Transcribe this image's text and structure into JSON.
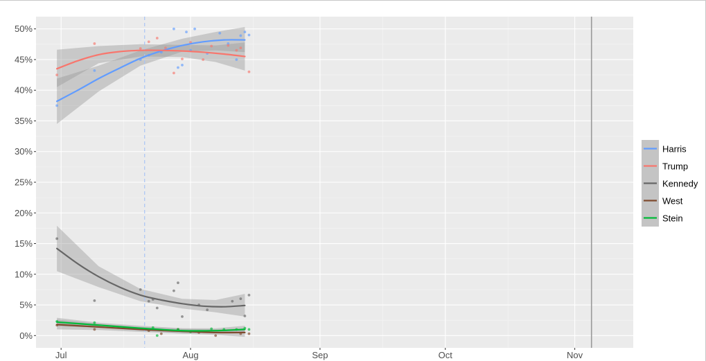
{
  "chart_data": {
    "type": "line",
    "title": "",
    "xlabel": "",
    "ylabel": "",
    "x_ticks": [
      "Jul",
      "Aug",
      "Sep",
      "Oct",
      "Nov"
    ],
    "x_tick_dates": [
      "2024-07-01",
      "2024-08-01",
      "2024-09-01",
      "2024-10-01",
      "2024-11-01"
    ],
    "xlim": [
      "2024-06-25",
      "2024-11-15"
    ],
    "ylim": [
      -2,
      52
    ],
    "y_ticks": [
      "0%",
      "5%",
      "10%",
      "15%",
      "20%",
      "25%",
      "30%",
      "35%",
      "40%",
      "45%",
      "50%"
    ],
    "y_tick_values": [
      0,
      5,
      10,
      15,
      20,
      25,
      30,
      35,
      40,
      45,
      50
    ],
    "grid": true,
    "legend_position": "right",
    "reference_lines": [
      {
        "date": "2024-07-21",
        "style": "dashed",
        "color": "#a9c4f5"
      },
      {
        "date": "2024-11-05",
        "style": "solid",
        "color": "#999999"
      }
    ],
    "series": [
      {
        "name": "Harris",
        "color": "#619cff",
        "trend": [
          [
            "2024-06-30",
            38.2
          ],
          [
            "2024-07-05",
            40.0
          ],
          [
            "2024-07-10",
            41.9
          ],
          [
            "2024-07-15",
            43.6
          ],
          [
            "2024-07-20",
            45.2
          ],
          [
            "2024-07-25",
            46.4
          ],
          [
            "2024-07-30",
            47.3
          ],
          [
            "2024-08-04",
            47.9
          ],
          [
            "2024-08-09",
            48.2
          ],
          [
            "2024-08-14",
            48.2
          ]
        ],
        "band": [
          [
            "2024-06-30",
            34.5,
            41.9
          ],
          [
            "2024-07-10",
            39.8,
            44.0
          ],
          [
            "2024-07-20",
            44.0,
            46.5
          ],
          [
            "2024-07-30",
            46.3,
            48.4
          ],
          [
            "2024-08-07",
            46.5,
            49.5
          ],
          [
            "2024-08-14",
            46.2,
            50.3
          ]
        ],
        "points": [
          [
            "2024-06-30",
            37.5
          ],
          [
            "2024-07-09",
            43.2
          ],
          [
            "2024-07-20",
            45.0
          ],
          [
            "2024-07-22",
            45.7
          ],
          [
            "2024-07-25",
            46.2
          ],
          [
            "2024-07-28",
            50.0
          ],
          [
            "2024-07-29",
            43.7
          ],
          [
            "2024-07-30",
            44.1
          ],
          [
            "2024-07-31",
            49.5
          ],
          [
            "2024-08-01",
            46.5
          ],
          [
            "2024-08-02",
            50.0
          ],
          [
            "2024-08-05",
            46.0
          ],
          [
            "2024-08-08",
            49.3
          ],
          [
            "2024-08-10",
            47.6
          ],
          [
            "2024-08-12",
            45.0
          ],
          [
            "2024-08-13",
            48.9
          ],
          [
            "2024-08-14",
            49.5
          ],
          [
            "2024-08-15",
            49.0
          ]
        ]
      },
      {
        "name": "Trump",
        "color": "#f8766d",
        "trend": [
          [
            "2024-06-30",
            43.5
          ],
          [
            "2024-07-05",
            44.8
          ],
          [
            "2024-07-10",
            45.8
          ],
          [
            "2024-07-15",
            46.3
          ],
          [
            "2024-07-20",
            46.5
          ],
          [
            "2024-07-25",
            46.5
          ],
          [
            "2024-07-30",
            46.4
          ],
          [
            "2024-08-04",
            46.2
          ],
          [
            "2024-08-09",
            45.9
          ],
          [
            "2024-08-14",
            45.5
          ]
        ],
        "band": [
          [
            "2024-06-30",
            40.5,
            46.6
          ],
          [
            "2024-07-10",
            44.4,
            47.2
          ],
          [
            "2024-07-20",
            45.5,
            47.5
          ],
          [
            "2024-07-30",
            45.4,
            47.4
          ],
          [
            "2024-08-07",
            44.6,
            47.3
          ],
          [
            "2024-08-14",
            43.2,
            47.8
          ]
        ],
        "points": [
          [
            "2024-06-30",
            42.5
          ],
          [
            "2024-07-09",
            47.6
          ],
          [
            "2024-07-20",
            46.8
          ],
          [
            "2024-07-22",
            47.9
          ],
          [
            "2024-07-24",
            48.5
          ],
          [
            "2024-07-26",
            46.9
          ],
          [
            "2024-07-28",
            42.8
          ],
          [
            "2024-07-30",
            45.1
          ],
          [
            "2024-08-01",
            47.8
          ],
          [
            "2024-08-04",
            45.0
          ],
          [
            "2024-08-06",
            47.2
          ],
          [
            "2024-08-10",
            47.3
          ],
          [
            "2024-08-12",
            46.5
          ],
          [
            "2024-08-13",
            46.9
          ],
          [
            "2024-08-15",
            43.0
          ]
        ]
      },
      {
        "name": "Kennedy",
        "color": "#666666",
        "trend": [
          [
            "2024-06-30",
            14.2
          ],
          [
            "2024-07-05",
            11.7
          ],
          [
            "2024-07-10",
            9.6
          ],
          [
            "2024-07-15",
            7.9
          ],
          [
            "2024-07-20",
            6.6
          ],
          [
            "2024-07-25",
            5.8
          ],
          [
            "2024-07-30",
            5.2
          ],
          [
            "2024-08-04",
            4.8
          ],
          [
            "2024-08-09",
            4.7
          ],
          [
            "2024-08-14",
            4.9
          ]
        ],
        "band": [
          [
            "2024-06-30",
            10.5,
            17.9
          ],
          [
            "2024-07-10",
            7.9,
            11.3
          ],
          [
            "2024-07-20",
            5.6,
            7.6
          ],
          [
            "2024-07-30",
            4.4,
            6.0
          ],
          [
            "2024-08-07",
            3.8,
            5.8
          ],
          [
            "2024-08-14",
            3.1,
            6.8
          ]
        ],
        "points": [
          [
            "2024-06-30",
            15.8
          ],
          [
            "2024-07-09",
            5.7
          ],
          [
            "2024-07-20",
            7.5
          ],
          [
            "2024-07-22",
            5.6
          ],
          [
            "2024-07-23",
            5.9
          ],
          [
            "2024-07-24",
            4.5
          ],
          [
            "2024-07-28",
            7.3
          ],
          [
            "2024-07-29",
            8.6
          ],
          [
            "2024-07-30",
            3.1
          ],
          [
            "2024-08-03",
            5.0
          ],
          [
            "2024-08-05",
            4.2
          ],
          [
            "2024-08-11",
            5.6
          ],
          [
            "2024-08-13",
            6.0
          ],
          [
            "2024-08-14",
            3.2
          ],
          [
            "2024-08-15",
            6.6
          ]
        ]
      },
      {
        "name": "West",
        "color": "#7f4a2e",
        "trend": [
          [
            "2024-06-30",
            1.8
          ],
          [
            "2024-07-10",
            1.4
          ],
          [
            "2024-07-20",
            1.0
          ],
          [
            "2024-07-30",
            0.7
          ],
          [
            "2024-08-07",
            0.5
          ],
          [
            "2024-08-14",
            0.5
          ]
        ],
        "band": [
          [
            "2024-06-30",
            1.0,
            2.6
          ],
          [
            "2024-07-10",
            0.9,
            1.9
          ],
          [
            "2024-07-20",
            0.6,
            1.4
          ],
          [
            "2024-07-30",
            0.3,
            1.1
          ],
          [
            "2024-08-07",
            0.1,
            1.0
          ],
          [
            "2024-08-14",
            -0.2,
            1.2
          ]
        ],
        "points": [
          [
            "2024-06-30",
            1.7
          ],
          [
            "2024-07-09",
            1.0
          ],
          [
            "2024-07-22",
            0.8
          ],
          [
            "2024-07-25",
            0.3
          ],
          [
            "2024-07-29",
            1.0
          ],
          [
            "2024-08-03",
            0.5
          ],
          [
            "2024-08-07",
            0.0
          ],
          [
            "2024-08-13",
            0.3
          ],
          [
            "2024-08-15",
            0.3
          ]
        ]
      },
      {
        "name": "Stein",
        "color": "#00ba38",
        "trend": [
          [
            "2024-06-30",
            2.2
          ],
          [
            "2024-07-10",
            1.7
          ],
          [
            "2024-07-20",
            1.2
          ],
          [
            "2024-07-30",
            0.8
          ],
          [
            "2024-08-07",
            0.8
          ],
          [
            "2024-08-14",
            1.0
          ]
        ],
        "band": [
          [
            "2024-06-30",
            1.5,
            2.9
          ],
          [
            "2024-07-10",
            1.3,
            2.1
          ],
          [
            "2024-07-20",
            0.8,
            1.6
          ],
          [
            "2024-07-30",
            0.4,
            1.2
          ],
          [
            "2024-08-07",
            0.4,
            1.2
          ],
          [
            "2024-08-14",
            0.5,
            1.6
          ]
        ],
        "points": [
          [
            "2024-06-30",
            2.3
          ],
          [
            "2024-07-09",
            2.1
          ],
          [
            "2024-07-22",
            1.0
          ],
          [
            "2024-07-23",
            1.3
          ],
          [
            "2024-07-24",
            0.0
          ],
          [
            "2024-07-29",
            1.0
          ],
          [
            "2024-08-01",
            0.6
          ],
          [
            "2024-08-06",
            1.1
          ],
          [
            "2024-08-09",
            1.0
          ],
          [
            "2024-08-12",
            1.0
          ],
          [
            "2024-08-14",
            1.2
          ],
          [
            "2024-08-15",
            1.0
          ]
        ]
      }
    ]
  }
}
